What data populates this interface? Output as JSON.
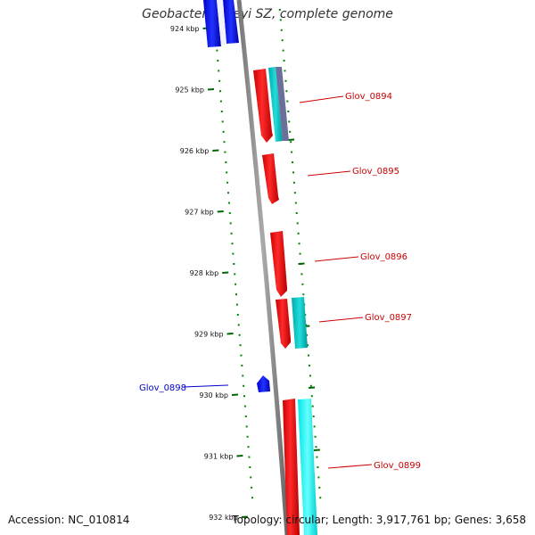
{
  "title": "Geobacter lovleyi SZ, complete genome",
  "accession": "Accession: NC_010814",
  "topology": "Topology: circular; Length: 3,917,761 bp; Genes: 3,658",
  "colors": {
    "backbone": "#888888",
    "forward_gene": "#ff0000",
    "reverse_gene": "#0000ff",
    "cyan_feature": "#00cccc",
    "tick_green": "#006600",
    "dot_green": "#008800",
    "label_red": "#cc0000",
    "label_blue": "#0000cc"
  },
  "ticks": [
    {
      "label": "924 kbp"
    },
    {
      "label": "925 kbp"
    },
    {
      "label": "926 kbp"
    },
    {
      "label": "927 kbp"
    },
    {
      "label": "928 kbp"
    },
    {
      "label": "929 kbp"
    },
    {
      "label": "930 kbp"
    },
    {
      "label": "931 kbp"
    },
    {
      "label": "932 kbp"
    }
  ],
  "genes": [
    {
      "name": "Glov_0894",
      "strand": "forward"
    },
    {
      "name": "Glov_0895",
      "strand": "forward"
    },
    {
      "name": "Glov_0896",
      "strand": "forward"
    },
    {
      "name": "Glov_0897",
      "strand": "forward"
    },
    {
      "name": "Glov_0898",
      "strand": "reverse"
    },
    {
      "name": "Glov_0899",
      "strand": "forward"
    }
  ]
}
